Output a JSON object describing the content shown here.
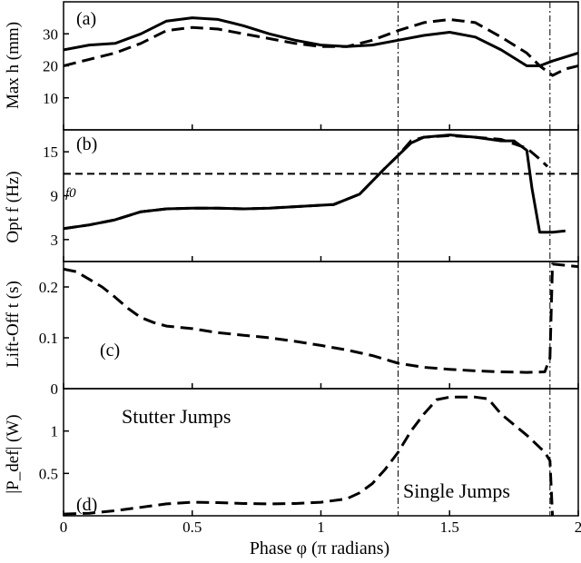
{
  "xaxis": {
    "label": "Phase φ (π radians)",
    "range": [
      0,
      2
    ],
    "ticks": [
      0,
      0.5,
      1,
      1.5,
      2
    ],
    "tick_labels": [
      "0",
      "0.5",
      "1",
      "1.5",
      "2"
    ]
  },
  "vlines": [
    1.3,
    1.89
  ],
  "chart_data": [
    {
      "type": "line",
      "panel_label": "(a)",
      "ylabel": "Max h (mm)",
      "ylim": [
        0,
        40
      ],
      "yticks": [
        10,
        20,
        30
      ],
      "ytick_labels": [
        "10",
        "20",
        "30"
      ],
      "grid": false,
      "series": [
        {
          "style": "solid",
          "x": [
            0,
            0.1,
            0.2,
            0.3,
            0.4,
            0.5,
            0.6,
            0.7,
            0.8,
            0.9,
            1.0,
            1.1,
            1.2,
            1.3,
            1.4,
            1.5,
            1.6,
            1.7,
            1.8,
            1.85,
            1.9,
            2.0
          ],
          "y": [
            25,
            26.5,
            27,
            30,
            34,
            35,
            34.5,
            32.5,
            30,
            28,
            26.5,
            26,
            26.5,
            28,
            29.5,
            30.5,
            29,
            25,
            20,
            20,
            21.5,
            24
          ]
        },
        {
          "style": "dashed",
          "x": [
            0,
            0.1,
            0.2,
            0.3,
            0.4,
            0.5,
            0.6,
            0.7,
            0.8,
            0.9,
            1.0,
            1.1,
            1.2,
            1.3,
            1.4,
            1.5,
            1.6,
            1.7,
            1.8,
            1.85,
            1.9,
            1.95,
            2.0
          ],
          "y": [
            20,
            22,
            24,
            27,
            31,
            32,
            31.5,
            30,
            28.5,
            27,
            26,
            26,
            28,
            31,
            33.5,
            34.5,
            33.5,
            29,
            24,
            20,
            17,
            19,
            20
          ]
        }
      ]
    },
    {
      "type": "line",
      "panel_label": "(b)",
      "ylabel": "Opt f (Hz)",
      "ylim": [
        0,
        18
      ],
      "yticks": [
        3,
        9,
        15
      ],
      "ytick_labels": [
        "3",
        "9",
        "15"
      ],
      "hline": {
        "y": 12,
        "label": "f0"
      },
      "grid": false,
      "series": [
        {
          "style": "solid",
          "x": [
            0,
            0.1,
            0.2,
            0.3,
            0.4,
            0.5,
            0.6,
            0.7,
            0.8,
            0.9,
            1.0,
            1.05,
            1.1,
            1.15,
            1.2,
            1.25,
            1.3,
            1.35,
            1.4,
            1.5,
            1.6,
            1.7,
            1.75,
            1.8,
            1.82,
            1.85,
            1.9,
            1.95
          ],
          "y": [
            4.5,
            5,
            5.7,
            6.8,
            7.2,
            7.3,
            7.3,
            7.2,
            7.3,
            7.5,
            7.7,
            7.8,
            8.5,
            9.2,
            11,
            12.8,
            14.5,
            16.2,
            17,
            17.3,
            17,
            16.5,
            16.5,
            15.2,
            10,
            4,
            4,
            4.2
          ]
        },
        {
          "style": "dashed",
          "x": [
            0,
            0.1,
            0.2,
            0.3,
            0.4,
            0.5,
            0.6,
            0.7,
            0.8,
            0.9,
            1.0,
            1.05,
            1.1,
            1.15,
            1.2,
            1.25,
            1.3,
            1.35,
            1.4,
            1.5,
            1.6,
            1.7,
            1.8,
            1.85,
            1.88
          ],
          "y": [
            4.5,
            5,
            5.7,
            6.8,
            7.2,
            7.3,
            7.3,
            7.2,
            7.3,
            7.5,
            7.7,
            7.8,
            8.5,
            9.2,
            11,
            12.8,
            14.5,
            16.5,
            17,
            17.2,
            17,
            16.7,
            15.5,
            14,
            13
          ]
        }
      ]
    },
    {
      "type": "line",
      "panel_label": "(c)",
      "ylabel": "Lift-Off t (s)",
      "ylim": [
        0,
        0.25
      ],
      "yticks": [
        0,
        0.1,
        0.2
      ],
      "ytick_labels": [
        "0",
        "0.1",
        "0.2"
      ],
      "grid": false,
      "series": [
        {
          "style": "dashed",
          "x": [
            0,
            0.05,
            0.1,
            0.15,
            0.2,
            0.25,
            0.3,
            0.35,
            0.4,
            0.5,
            0.6,
            0.7,
            0.8,
            0.9,
            1.0,
            1.1,
            1.2,
            1.3,
            1.4,
            1.5,
            1.6,
            1.7,
            1.8,
            1.87,
            1.89,
            1.9,
            2.0
          ],
          "y": [
            0.235,
            0.23,
            0.215,
            0.2,
            0.18,
            0.158,
            0.14,
            0.13,
            0.123,
            0.118,
            0.11,
            0.105,
            0.1,
            0.093,
            0.085,
            0.076,
            0.065,
            0.05,
            0.042,
            0.038,
            0.035,
            0.033,
            0.032,
            0.033,
            0.06,
            0.245,
            0.24
          ]
        }
      ]
    },
    {
      "type": "line",
      "panel_label": "(d)",
      "ylabel": "|P_def| (W)",
      "ylim": [
        0,
        1.5
      ],
      "yticks": [
        0.5,
        1.0
      ],
      "ytick_labels": [
        "0.5",
        "1"
      ],
      "annotations": [
        "Stutter Jumps",
        "Single Jumps"
      ],
      "grid": false,
      "series": [
        {
          "style": "dashed",
          "x": [
            0,
            0.1,
            0.2,
            0.3,
            0.4,
            0.5,
            0.6,
            0.7,
            0.8,
            0.9,
            1.0,
            1.1,
            1.15,
            1.2,
            1.25,
            1.3,
            1.35,
            1.4,
            1.45,
            1.5,
            1.6,
            1.65,
            1.7,
            1.8,
            1.87,
            1.89,
            1.9
          ],
          "y": [
            0.02,
            0.03,
            0.06,
            0.1,
            0.14,
            0.16,
            0.155,
            0.145,
            0.14,
            0.145,
            0.16,
            0.2,
            0.27,
            0.38,
            0.55,
            0.75,
            1.0,
            1.2,
            1.37,
            1.4,
            1.4,
            1.38,
            1.2,
            0.95,
            0.75,
            0.65,
            0.0
          ]
        }
      ]
    }
  ]
}
